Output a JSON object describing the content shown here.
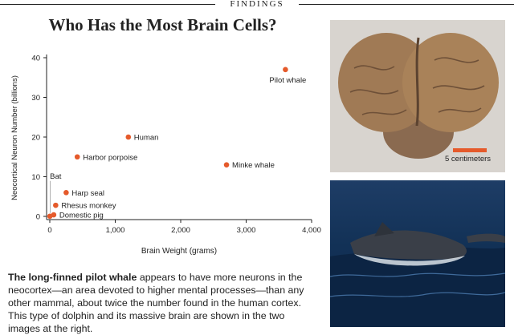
{
  "header": {
    "kicker": "FINDINGS"
  },
  "caption": {
    "lead": "The long-finned pilot whale",
    "body": " appears to have more neurons in the neocortex—an area devoted to higher mental processes—than any other mammal, about twice the number found in the human cortex. This type of dolphin and its massive brain are shown in the two images at the right."
  },
  "brain_photo": {
    "scale_label": "5 centimeters",
    "scale_color": "#e55a2b"
  },
  "chart_data": {
    "type": "scatter",
    "title": "Who Has the Most Brain Cells?",
    "xlabel": "Brain Weight (grams)",
    "ylabel": "Neocortical Neuron Number (billions)",
    "xlim": [
      0,
      4000
    ],
    "ylim": [
      0,
      40
    ],
    "xticks": [
      {
        "value": 0,
        "label": "0"
      },
      {
        "value": 1000,
        "label": "1,000"
      },
      {
        "value": 2000,
        "label": "2,000"
      },
      {
        "value": 3000,
        "label": "3,000"
      },
      {
        "value": 4000,
        "label": "4,000"
      }
    ],
    "yticks": [
      {
        "value": 0,
        "label": "0"
      },
      {
        "value": 10,
        "label": "10"
      },
      {
        "value": 20,
        "label": "20"
      },
      {
        "value": 30,
        "label": "30"
      },
      {
        "value": 40,
        "label": "40"
      }
    ],
    "grid": false,
    "marker_color": "#e55a2b",
    "points": [
      {
        "label": "Bat",
        "x": 2,
        "y": 0.05,
        "label_pos": "above"
      },
      {
        "label": "Domestic pig",
        "x": 60,
        "y": 0.4,
        "label_pos": "right"
      },
      {
        "label": "Rhesus monkey",
        "x": 90,
        "y": 2.8,
        "label_pos": "right"
      },
      {
        "label": "Harp seal",
        "x": 250,
        "y": 6,
        "label_pos": "right"
      },
      {
        "label": "Harbor porpoise",
        "x": 420,
        "y": 15,
        "label_pos": "right"
      },
      {
        "label": "Human",
        "x": 1200,
        "y": 20,
        "label_pos": "right"
      },
      {
        "label": "Minke whale",
        "x": 2700,
        "y": 13,
        "label_pos": "right"
      },
      {
        "label": "Pilot whale",
        "x": 3600,
        "y": 37,
        "label_pos": "below-left"
      }
    ]
  }
}
